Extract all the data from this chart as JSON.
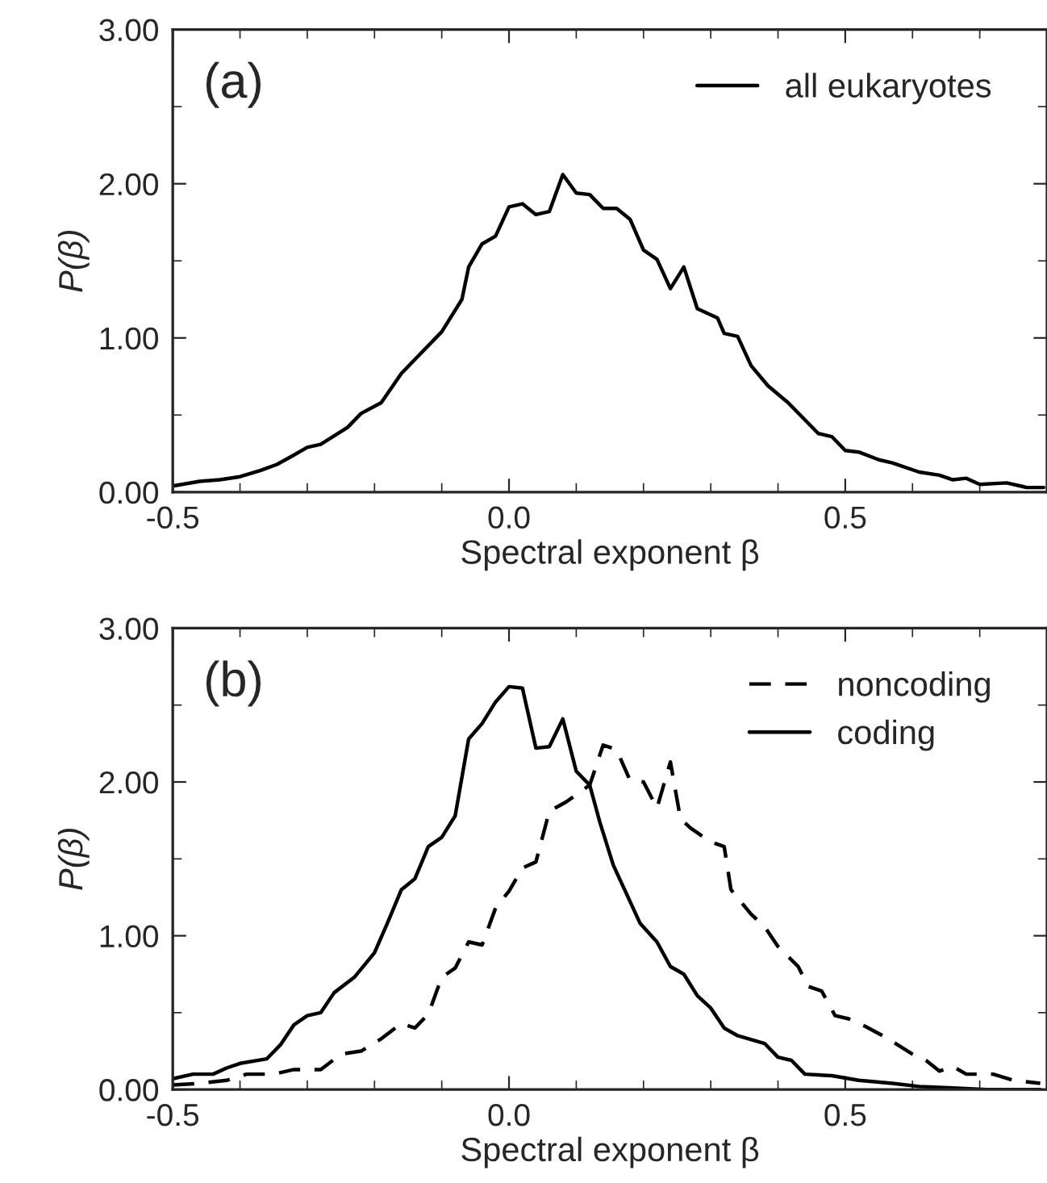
{
  "chart_data": [
    {
      "type": "line",
      "xlabel": "Spectral exponent β",
      "ylabel": "P(β)",
      "annotations": [
        "(a)"
      ],
      "xlim": [
        -0.5,
        0.8
      ],
      "ylim": [
        0,
        3
      ],
      "xticks": [
        {
          "value": -0.5,
          "label": "-0.5"
        },
        {
          "value": 0,
          "label": "0.0"
        },
        {
          "value": 0.5,
          "label": "0.5"
        }
      ],
      "yticks": [
        {
          "value": 0,
          "label": "0.00"
        },
        {
          "value": 1,
          "label": "1.00"
        },
        {
          "value": 2,
          "label": "2.00"
        },
        {
          "value": 3,
          "label": "3.00"
        }
      ],
      "legend": "top right",
      "grid": false,
      "marker": "none",
      "series": [
        {
          "name": "all eukaryotes",
          "color": "#000000",
          "line_style": "solid",
          "x": [
            -0.5,
            -0.46,
            -0.43,
            -0.4,
            -0.37,
            -0.345,
            -0.32,
            -0.3,
            -0.28,
            -0.24,
            -0.22,
            -0.19,
            -0.16,
            -0.14,
            -0.1,
            -0.07,
            -0.06,
            -0.04,
            -0.02,
            0.0,
            0.02,
            0.04,
            0.06,
            0.08,
            0.1,
            0.12,
            0.14,
            0.16,
            0.18,
            0.2,
            0.22,
            0.24,
            0.26,
            0.28,
            0.31,
            0.32,
            0.34,
            0.36,
            0.385,
            0.415,
            0.46,
            0.48,
            0.5,
            0.52,
            0.55,
            0.57,
            0.61,
            0.64,
            0.66,
            0.68,
            0.7,
            0.74,
            0.77,
            0.795
          ],
          "values": [
            0.04,
            0.07,
            0.08,
            0.1,
            0.14,
            0.18,
            0.24,
            0.29,
            0.31,
            0.42,
            0.51,
            0.58,
            0.77,
            0.86,
            1.04,
            1.25,
            1.46,
            1.61,
            1.66,
            1.85,
            1.87,
            1.8,
            1.82,
            2.06,
            1.94,
            1.93,
            1.84,
            1.84,
            1.77,
            1.57,
            1.51,
            1.32,
            1.46,
            1.19,
            1.13,
            1.03,
            1.01,
            0.82,
            0.69,
            0.58,
            0.38,
            0.36,
            0.27,
            0.26,
            0.21,
            0.19,
            0.13,
            0.11,
            0.08,
            0.09,
            0.05,
            0.06,
            0.03,
            0.03
          ]
        }
      ]
    },
    {
      "type": "line",
      "xlabel": "Spectral exponent β",
      "ylabel": "P(β)",
      "annotations": [
        "(b)"
      ],
      "xlim": [
        -0.5,
        0.8
      ],
      "ylim": [
        0,
        3
      ],
      "xticks": [
        {
          "value": -0.5,
          "label": "-0.5"
        },
        {
          "value": 0,
          "label": "0.0"
        },
        {
          "value": 0.5,
          "label": "0.5"
        }
      ],
      "yticks": [
        {
          "value": 0,
          "label": "0.00"
        },
        {
          "value": 1,
          "label": "1.00"
        },
        {
          "value": 2,
          "label": "2.00"
        },
        {
          "value": 3,
          "label": "3.00"
        }
      ],
      "legend": "top right",
      "grid": false,
      "marker": "none",
      "series": [
        {
          "name": "noncoding",
          "color": "#000000",
          "line_style": "dashed",
          "x": [
            -0.5,
            -0.46,
            -0.42,
            -0.39,
            -0.35,
            -0.32,
            -0.28,
            -0.25,
            -0.22,
            -0.19,
            -0.16,
            -0.14,
            -0.12,
            -0.1,
            -0.08,
            -0.06,
            -0.04,
            -0.02,
            0.0,
            0.02,
            0.04,
            0.06,
            0.085,
            0.12,
            0.14,
            0.16,
            0.18,
            0.2,
            0.22,
            0.24,
            0.255,
            0.27,
            0.3,
            0.32,
            0.33,
            0.36,
            0.38,
            0.4,
            0.43,
            0.445,
            0.465,
            0.485,
            0.505,
            0.53,
            0.56,
            0.6,
            0.62,
            0.64,
            0.66,
            0.68,
            0.72,
            0.75,
            0.79
          ],
          "values": [
            0.03,
            0.04,
            0.06,
            0.1,
            0.1,
            0.13,
            0.13,
            0.23,
            0.25,
            0.33,
            0.43,
            0.4,
            0.49,
            0.73,
            0.79,
            0.96,
            0.94,
            1.18,
            1.29,
            1.44,
            1.48,
            1.81,
            1.87,
            1.98,
            2.24,
            2.21,
            2.01,
            2.0,
            1.83,
            2.13,
            1.76,
            1.7,
            1.61,
            1.58,
            1.3,
            1.14,
            1.06,
            0.93,
            0.8,
            0.67,
            0.64,
            0.48,
            0.46,
            0.41,
            0.34,
            0.23,
            0.19,
            0.12,
            0.15,
            0.1,
            0.1,
            0.06,
            0.04
          ]
        },
        {
          "name": "coding",
          "color": "#000000",
          "line_style": "solid",
          "x": [
            -0.5,
            -0.47,
            -0.44,
            -0.42,
            -0.4,
            -0.36,
            -0.34,
            -0.32,
            -0.3,
            -0.28,
            -0.26,
            -0.23,
            -0.2,
            -0.18,
            -0.16,
            -0.14,
            -0.12,
            -0.1,
            -0.08,
            -0.06,
            -0.04,
            -0.02,
            0.0,
            0.02,
            0.04,
            0.06,
            0.08,
            0.1,
            0.12,
            0.135,
            0.155,
            0.175,
            0.195,
            0.22,
            0.24,
            0.26,
            0.28,
            0.3,
            0.32,
            0.34,
            0.38,
            0.4,
            0.42,
            0.44,
            0.48,
            0.52,
            0.57,
            0.61,
            0.66,
            0.71,
            0.79
          ],
          "values": [
            0.07,
            0.1,
            0.1,
            0.14,
            0.17,
            0.2,
            0.29,
            0.42,
            0.48,
            0.5,
            0.63,
            0.73,
            0.89,
            1.09,
            1.3,
            1.37,
            1.58,
            1.64,
            1.78,
            2.28,
            2.38,
            2.52,
            2.62,
            2.61,
            2.22,
            2.23,
            2.41,
            2.07,
            1.98,
            1.74,
            1.46,
            1.27,
            1.08,
            0.96,
            0.8,
            0.75,
            0.61,
            0.53,
            0.4,
            0.35,
            0.3,
            0.21,
            0.19,
            0.1,
            0.09,
            0.06,
            0.04,
            0.02,
            0.01,
            0.0,
            0.0
          ]
        }
      ]
    }
  ]
}
